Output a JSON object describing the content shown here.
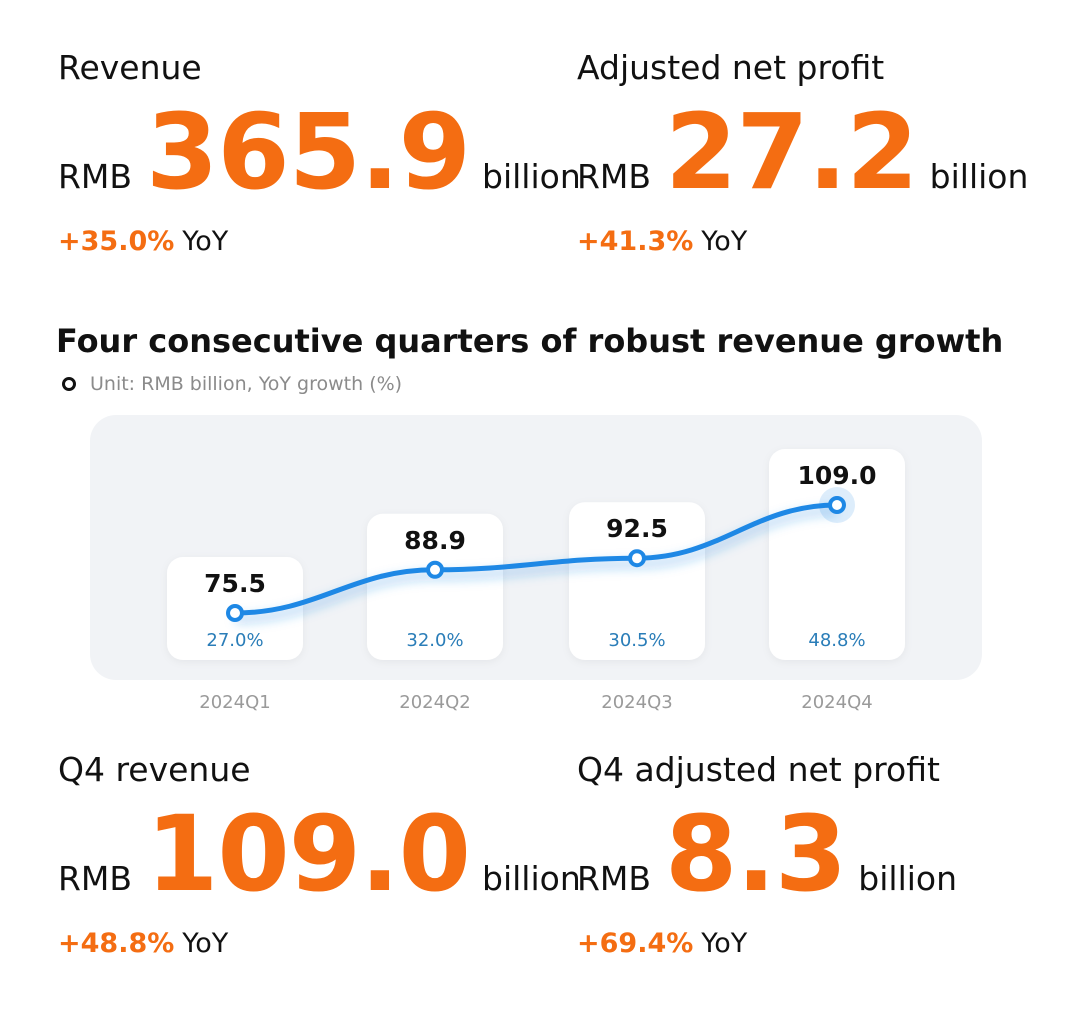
{
  "top_left": {
    "label": "Revenue",
    "currency": "RMB",
    "value": "365.9",
    "unit": "billion",
    "yoy_pct": "+35.0%",
    "yoy_label": "YoY"
  },
  "top_right": {
    "label": "Adjusted net profit",
    "currency": "RMB",
    "value": "27.2",
    "unit": "billion",
    "yoy_pct": "+41.3%",
    "yoy_label": "YoY"
  },
  "bottom_left": {
    "label": "Q4 revenue",
    "currency": "RMB",
    "value": "109.0",
    "unit": "billion",
    "yoy_pct": "+48.8%",
    "yoy_label": "YoY"
  },
  "bottom_right": {
    "label": "Q4 adjusted net profit",
    "currency": "RMB",
    "value": "8.3",
    "unit": "billion",
    "yoy_pct": "+69.4%",
    "yoy_label": "YoY"
  },
  "colors": {
    "accent": "#f46d12",
    "line": "#1e88e5",
    "growth_text": "#2a7db8",
    "panel": "#f1f3f6"
  },
  "chart_data": {
    "type": "line",
    "title": "Four consecutive quarters of robust revenue growth",
    "subtitle": "Unit: RMB billion, YoY growth (%)",
    "categories": [
      "2024Q1",
      "2024Q2",
      "2024Q3",
      "2024Q4"
    ],
    "series": [
      {
        "values": [
          75.5,
          88.9,
          92.5,
          109.0
        ],
        "labels": [
          "75.5",
          "88.9",
          "92.5",
          "109.0"
        ]
      }
    ],
    "yoy_growth": [
      "27.0%",
      "32.0%",
      "30.5%",
      "48.8%"
    ],
    "grid": false
  }
}
